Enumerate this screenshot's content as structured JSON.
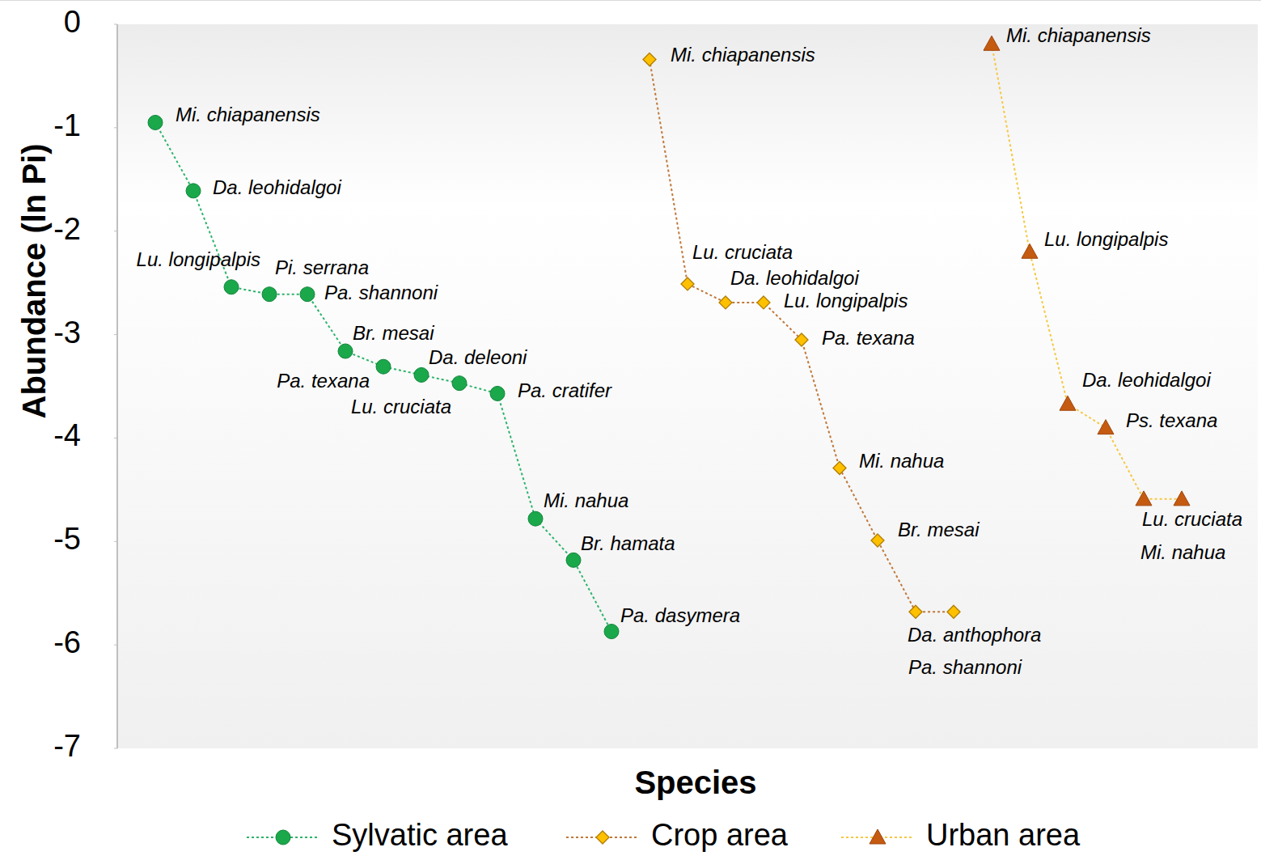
{
  "chart_data": {
    "type": "line",
    "x_label": "Species",
    "y_label": "Abundance (ln Pi)",
    "xlim": [
      0,
      30
    ],
    "ylim": [
      -7,
      0
    ],
    "yticks": [
      0,
      -1,
      -2,
      -3,
      -4,
      -5,
      -6,
      -7
    ],
    "tick_labels": "y",
    "grid": false,
    "legend": "bottom",
    "series": [
      {
        "name": "Sylvatic area",
        "color": "#1aa84b",
        "marker": "circle",
        "line_style": "dotted",
        "x": [
          1,
          2,
          3,
          4,
          5,
          6,
          7,
          8,
          9,
          10,
          11,
          12,
          13
        ],
        "values": [
          -0.95,
          -1.61,
          -2.54,
          -2.61,
          -2.61,
          -3.16,
          -3.31,
          -3.39,
          -3.47,
          -3.57,
          -4.78,
          -5.18,
          -5.87
        ],
        "labels": [
          "Mi. chiapanensis",
          "Da. leohidalgoi",
          "Lu. longipalpis",
          "Pi. serrana",
          "Pa. shannoni",
          "Br. mesai",
          "Pa. texana",
          "Da. deleoni",
          "Lu. cruciata",
          "Pa. cratifer",
          "Mi. nahua",
          "Br. hamata",
          "Pa. dasymera"
        ]
      },
      {
        "name": "Crop area",
        "color": "#ffc000",
        "marker": "diamond",
        "line_style": "dotted",
        "x": [
          14,
          15,
          16,
          17,
          18,
          19,
          20,
          21,
          22
        ],
        "values": [
          -0.34,
          -2.51,
          -2.69,
          -2.69,
          -3.05,
          -4.29,
          -4.99,
          -5.68,
          -5.68
        ],
        "labels": [
          "Mi. chiapanensis",
          "Lu. cruciata",
          "Da. leohidalgoi",
          "Lu. longipalpis",
          "Pa. texana",
          "Mi. nahua",
          "Br. mesai",
          "Da. anthophora",
          "Pa. shannoni"
        ]
      },
      {
        "name": "Urban area",
        "color": "#c55a11",
        "marker": "triangle",
        "line_style": "dotted",
        "x": [
          23,
          24,
          25,
          26,
          27,
          28
        ],
        "values": [
          -0.19,
          -2.2,
          -3.67,
          -3.9,
          -4.59,
          -4.59
        ],
        "labels": [
          "Mi. chiapanensis",
          "Lu. longipalpis",
          "Da. leohidalgoi",
          "Ps. texana",
          "Lu. cruciata",
          "Mi. nahua"
        ]
      }
    ]
  }
}
